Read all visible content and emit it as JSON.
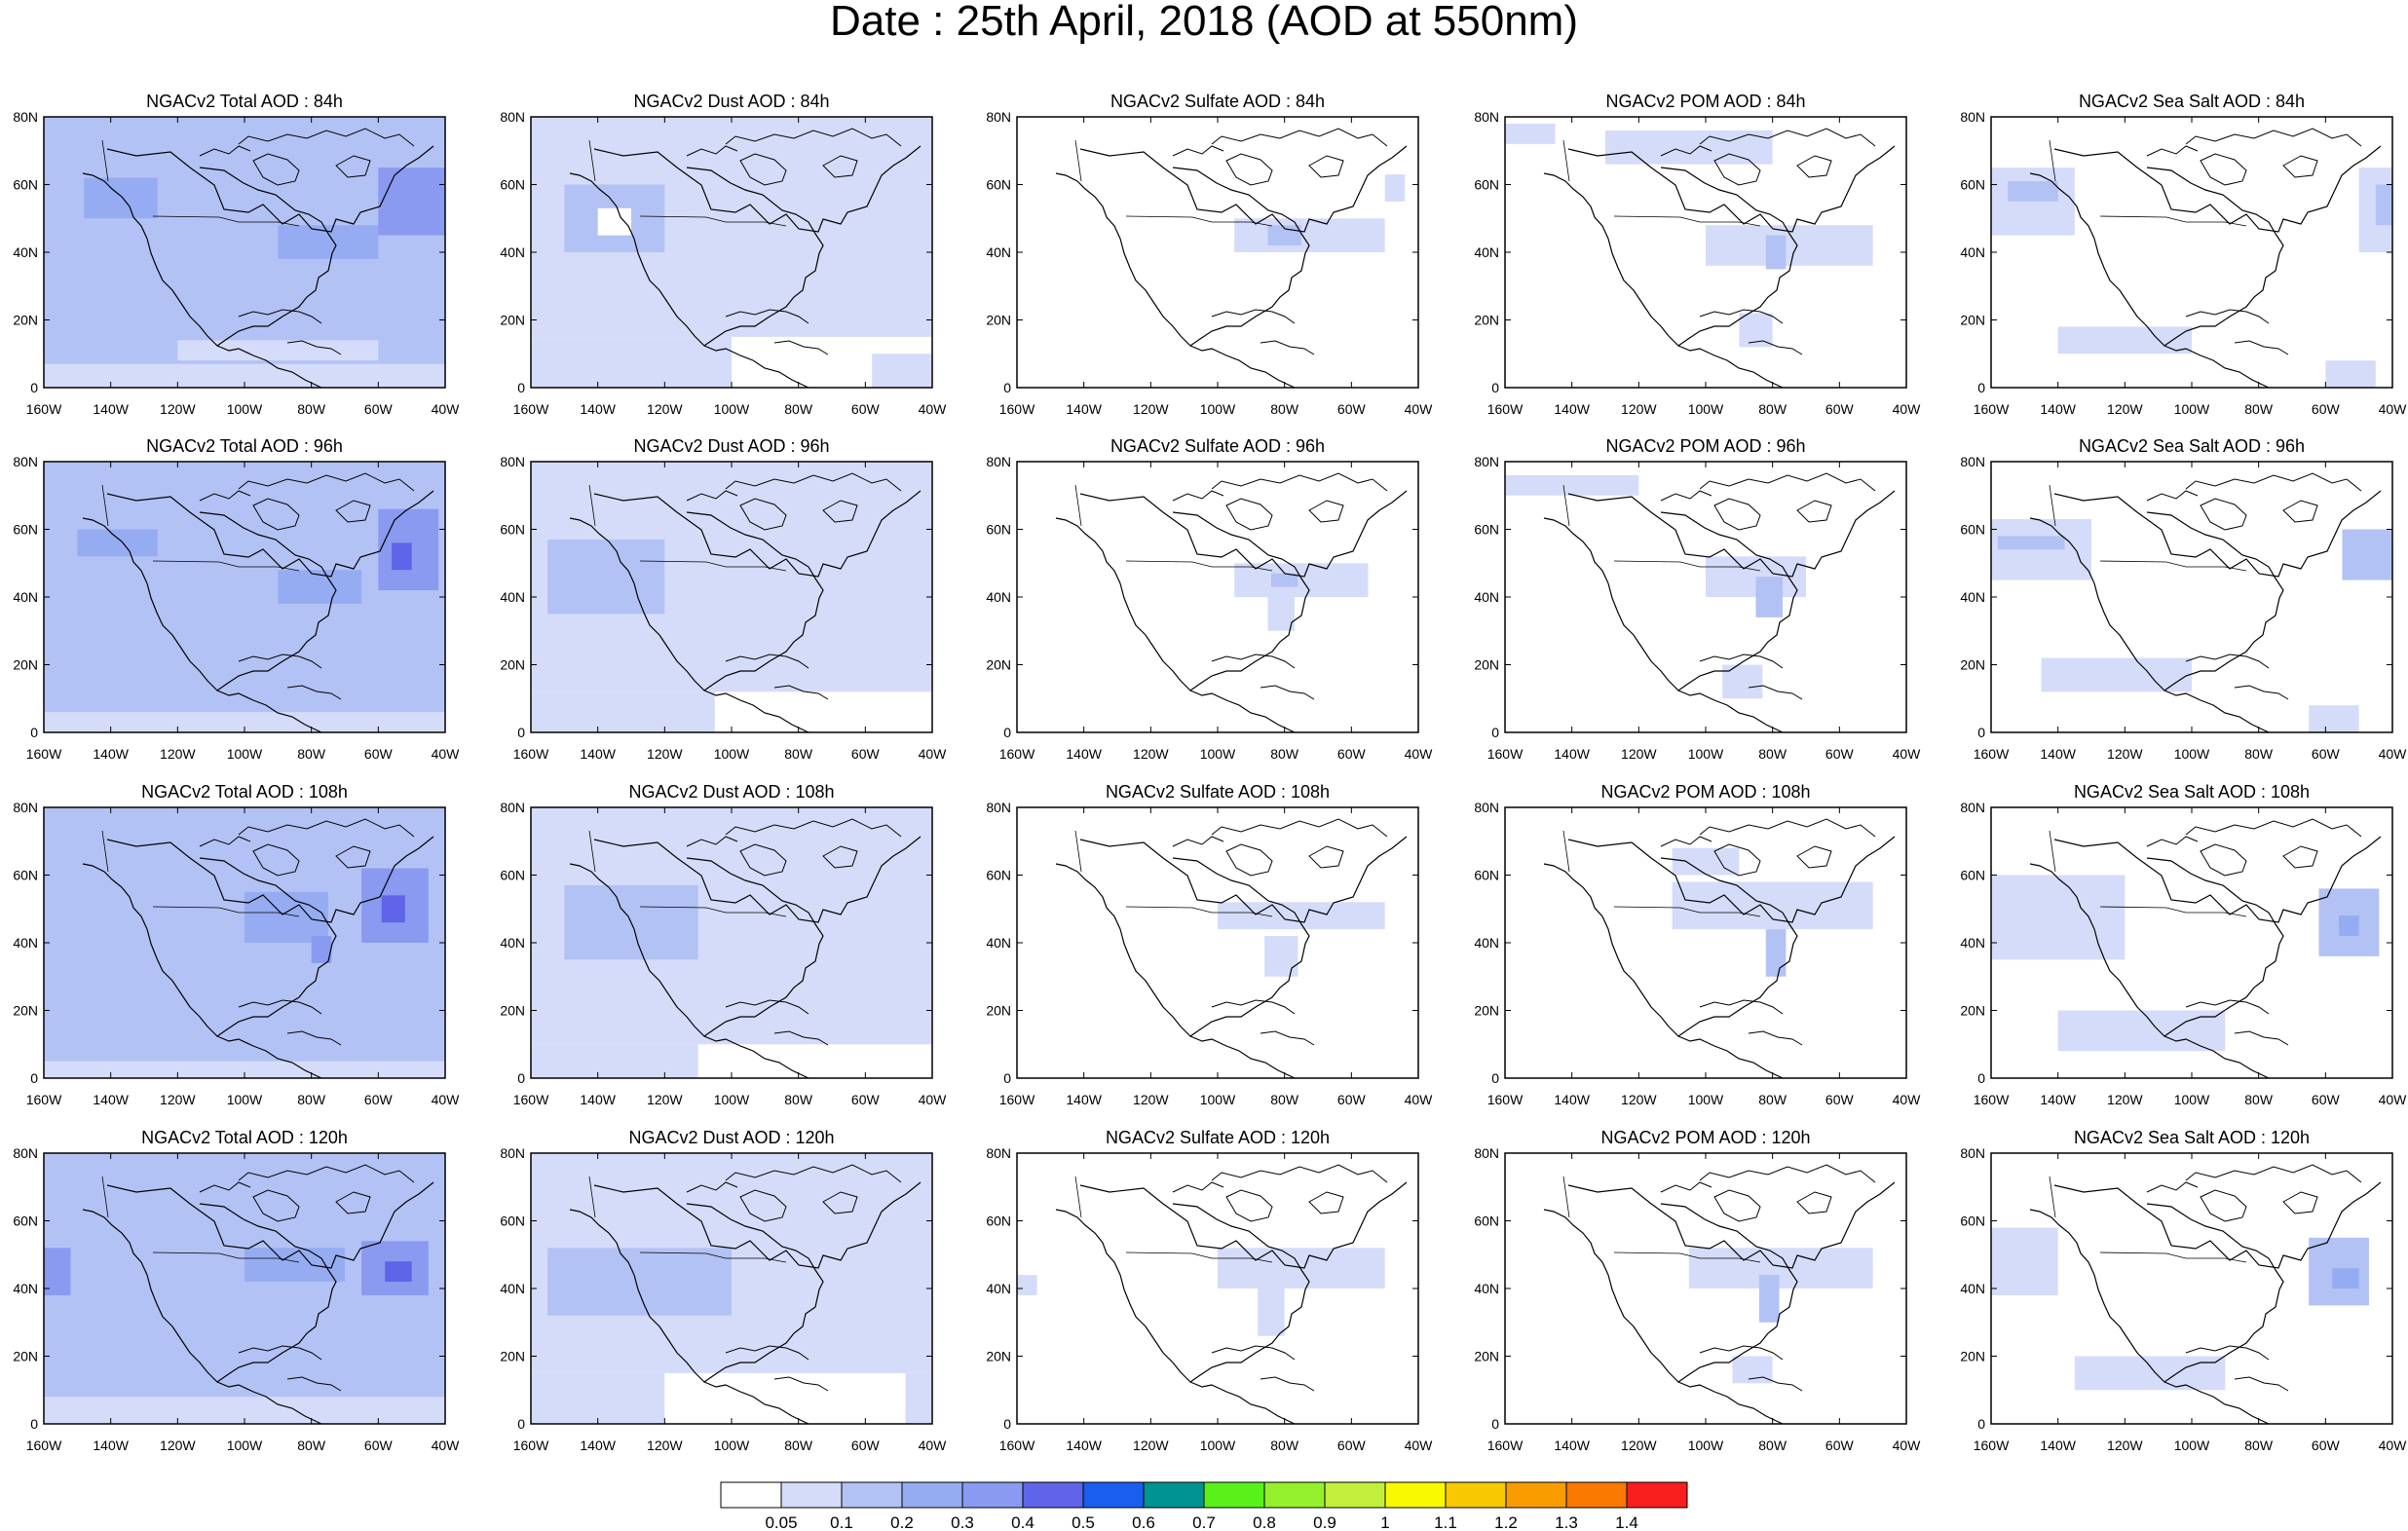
{
  "title": "Date : 25th April, 2018 (AOD at 550nm)",
  "rows": [
    "84h",
    "96h",
    "108h",
    "120h"
  ],
  "columns": [
    "Total",
    "Dust",
    "Sulfate",
    "POM",
    "Sea Salt"
  ],
  "panels": [
    [
      "NGACv2 Total AOD : 84h",
      "NGACv2 Dust AOD : 84h",
      "NGACv2 Sulfate AOD : 84h",
      "NGACv2 POM AOD : 84h",
      "NGACv2 Sea Salt AOD : 84h"
    ],
    [
      "NGACv2 Total AOD : 96h",
      "NGACv2 Dust AOD : 96h",
      "NGACv2 Sulfate AOD : 96h",
      "NGACv2 POM AOD : 96h",
      "NGACv2 Sea Salt AOD : 96h"
    ],
    [
      "NGACv2 Total AOD : 108h",
      "NGACv2 Dust AOD : 108h",
      "NGACv2 Sulfate AOD : 108h",
      "NGACv2 POM AOD : 108h",
      "NGACv2 Sea Salt AOD : 108h"
    ],
    [
      "NGACv2 Total AOD : 120h",
      "NGACv2 Dust AOD : 120h",
      "NGACv2 Sulfate AOD : 120h",
      "NGACv2 POM AOD : 120h",
      "NGACv2 Sea Salt  AOD : 120h"
    ]
  ],
  "map": {
    "lon_min": -160,
    "lon_max": -40,
    "lat_min": 0,
    "lat_max": 80,
    "lon_ticks": [
      -160,
      -140,
      -120,
      -100,
      -80,
      -60,
      -40
    ],
    "lon_labels": [
      "160W",
      "140W",
      "120W",
      "100W",
      "80W",
      "60W",
      "40W"
    ],
    "lat_ticks": [
      0,
      20,
      40,
      60,
      80
    ],
    "lat_labels": [
      "0",
      "20N",
      "40N",
      "60N",
      "80N"
    ]
  },
  "colorbar": {
    "labels": [
      "0.05",
      "0.1",
      "0.2",
      "0.3",
      "0.4",
      "0.5",
      "0.6",
      "0.7",
      "0.8",
      "0.9",
      "1",
      "1.1",
      "1.2",
      "1.3",
      "1.4"
    ],
    "colors": [
      "#ffffff",
      "#d5dcf9",
      "#b3c2f4",
      "#96acf2",
      "#8a9af0",
      "#5f64e8",
      "#1a5ef0",
      "#009393",
      "#5af01a",
      "#94f02a",
      "#c2f03a",
      "#f8f800",
      "#f8c800",
      "#f89c00",
      "#f87800",
      "#f81e1e"
    ]
  },
  "fields": {
    "Total": {
      "84h": [
        {
          "lon": -160,
          "lat": 0,
          "w": 120,
          "h": 80,
          "level": 2
        },
        {
          "lon": -160,
          "lat": 0,
          "w": 120,
          "h": 7,
          "level": 1
        },
        {
          "lon": -148,
          "lat": 50,
          "w": 22,
          "h": 12,
          "level": 3
        },
        {
          "lon": -90,
          "lat": 38,
          "w": 30,
          "h": 10,
          "level": 3
        },
        {
          "lon": -60,
          "lat": 45,
          "w": 20,
          "h": 20,
          "level": 4
        },
        {
          "lon": -120,
          "lat": 8,
          "w": 60,
          "h": 6,
          "level": 1
        }
      ],
      "96h": [
        {
          "lon": -160,
          "lat": 0,
          "w": 120,
          "h": 80,
          "level": 2
        },
        {
          "lon": -160,
          "lat": 0,
          "w": 120,
          "h": 6,
          "level": 1
        },
        {
          "lon": -150,
          "lat": 52,
          "w": 24,
          "h": 8,
          "level": 3
        },
        {
          "lon": -90,
          "lat": 38,
          "w": 25,
          "h": 10,
          "level": 3
        },
        {
          "lon": -60,
          "lat": 42,
          "w": 18,
          "h": 24,
          "level": 4
        },
        {
          "lon": -56,
          "lat": 48,
          "w": 6,
          "h": 8,
          "level": 5
        }
      ],
      "108h": [
        {
          "lon": -160,
          "lat": 0,
          "w": 120,
          "h": 80,
          "level": 2
        },
        {
          "lon": -160,
          "lat": 0,
          "w": 120,
          "h": 5,
          "level": 1
        },
        {
          "lon": -100,
          "lat": 40,
          "w": 25,
          "h": 15,
          "level": 3
        },
        {
          "lon": -65,
          "lat": 40,
          "w": 20,
          "h": 22,
          "level": 4
        },
        {
          "lon": -59,
          "lat": 46,
          "w": 7,
          "h": 8,
          "level": 5
        },
        {
          "lon": -80,
          "lat": 34,
          "w": 6,
          "h": 8,
          "level": 4
        }
      ],
      "120h": [
        {
          "lon": -160,
          "lat": 0,
          "w": 120,
          "h": 80,
          "level": 2
        },
        {
          "lon": -160,
          "lat": 0,
          "w": 120,
          "h": 8,
          "level": 1
        },
        {
          "lon": -160,
          "lat": 38,
          "w": 8,
          "h": 14,
          "level": 4
        },
        {
          "lon": -100,
          "lat": 42,
          "w": 30,
          "h": 10,
          "level": 3
        },
        {
          "lon": -65,
          "lat": 38,
          "w": 20,
          "h": 16,
          "level": 4
        },
        {
          "lon": -58,
          "lat": 42,
          "w": 8,
          "h": 6,
          "level": 5
        }
      ]
    },
    "Dust": {
      "84h": [
        {
          "lon": -160,
          "lat": 15,
          "w": 120,
          "h": 65,
          "level": 1
        },
        {
          "lon": -160,
          "lat": 0,
          "w": 60,
          "h": 15,
          "level": 1
        },
        {
          "lon": -150,
          "lat": 40,
          "w": 30,
          "h": 20,
          "level": 2
        },
        {
          "lon": -140,
          "lat": 45,
          "w": 10,
          "h": 8,
          "level": 0
        },
        {
          "lon": -58,
          "lat": 0,
          "w": 18,
          "h": 10,
          "level": 1
        }
      ],
      "96h": [
        {
          "lon": -160,
          "lat": 12,
          "w": 120,
          "h": 68,
          "level": 1
        },
        {
          "lon": -160,
          "lat": 0,
          "w": 55,
          "h": 12,
          "level": 1
        },
        {
          "lon": -155,
          "lat": 35,
          "w": 35,
          "h": 22,
          "level": 2
        },
        {
          "lon": -50,
          "lat": 20,
          "w": 10,
          "h": 40,
          "level": 1
        }
      ],
      "108h": [
        {
          "lon": -160,
          "lat": 10,
          "w": 120,
          "h": 70,
          "level": 1
        },
        {
          "lon": -160,
          "lat": 0,
          "w": 50,
          "h": 10,
          "level": 1
        },
        {
          "lon": -150,
          "lat": 35,
          "w": 40,
          "h": 22,
          "level": 2
        }
      ],
      "120h": [
        {
          "lon": -160,
          "lat": 15,
          "w": 120,
          "h": 65,
          "level": 1
        },
        {
          "lon": -160,
          "lat": 0,
          "w": 40,
          "h": 15,
          "level": 1
        },
        {
          "lon": -155,
          "lat": 32,
          "w": 55,
          "h": 20,
          "level": 2
        },
        {
          "lon": -48,
          "lat": 0,
          "w": 8,
          "h": 15,
          "level": 1
        }
      ]
    },
    "Sulfate": {
      "84h": [
        {
          "lon": -95,
          "lat": 40,
          "w": 45,
          "h": 10,
          "level": 1
        },
        {
          "lon": -85,
          "lat": 42,
          "w": 10,
          "h": 6,
          "level": 2
        },
        {
          "lon": -50,
          "lat": 55,
          "w": 6,
          "h": 8,
          "level": 1
        }
      ],
      "96h": [
        {
          "lon": -95,
          "lat": 40,
          "w": 40,
          "h": 10,
          "level": 1
        },
        {
          "lon": -84,
          "lat": 43,
          "w": 8,
          "h": 4,
          "level": 2
        },
        {
          "lon": -85,
          "lat": 30,
          "w": 8,
          "h": 10,
          "level": 1
        }
      ],
      "108h": [
        {
          "lon": -100,
          "lat": 44,
          "w": 50,
          "h": 8,
          "level": 1
        },
        {
          "lon": -86,
          "lat": 30,
          "w": 10,
          "h": 12,
          "level": 1
        }
      ],
      "120h": [
        {
          "lon": -100,
          "lat": 40,
          "w": 50,
          "h": 12,
          "level": 1
        },
        {
          "lon": -88,
          "lat": 26,
          "w": 8,
          "h": 14,
          "level": 1
        },
        {
          "lon": -160,
          "lat": 38,
          "w": 6,
          "h": 6,
          "level": 1
        }
      ]
    },
    "POM": {
      "84h": [
        {
          "lon": -160,
          "lat": 72,
          "w": 15,
          "h": 6,
          "level": 1
        },
        {
          "lon": -130,
          "lat": 66,
          "w": 50,
          "h": 10,
          "level": 1
        },
        {
          "lon": -100,
          "lat": 36,
          "w": 50,
          "h": 12,
          "level": 1
        },
        {
          "lon": -82,
          "lat": 35,
          "w": 6,
          "h": 10,
          "level": 2
        },
        {
          "lon": -90,
          "lat": 12,
          "w": 10,
          "h": 10,
          "level": 1
        }
      ],
      "96h": [
        {
          "lon": -160,
          "lat": 70,
          "w": 40,
          "h": 6,
          "level": 1
        },
        {
          "lon": -100,
          "lat": 40,
          "w": 30,
          "h": 12,
          "level": 1
        },
        {
          "lon": -85,
          "lat": 34,
          "w": 8,
          "h": 12,
          "level": 2
        },
        {
          "lon": -95,
          "lat": 10,
          "w": 12,
          "h": 10,
          "level": 1
        }
      ],
      "108h": [
        {
          "lon": -110,
          "lat": 44,
          "w": 60,
          "h": 14,
          "level": 1
        },
        {
          "lon": -82,
          "lat": 30,
          "w": 6,
          "h": 14,
          "level": 2
        },
        {
          "lon": -110,
          "lat": 60,
          "w": 20,
          "h": 8,
          "level": 1
        }
      ],
      "120h": [
        {
          "lon": -105,
          "lat": 40,
          "w": 55,
          "h": 12,
          "level": 1
        },
        {
          "lon": -84,
          "lat": 30,
          "w": 6,
          "h": 14,
          "level": 2
        },
        {
          "lon": -92,
          "lat": 12,
          "w": 12,
          "h": 8,
          "level": 1
        }
      ]
    },
    "Sea Salt": {
      "84h": [
        {
          "lon": -160,
          "lat": 45,
          "w": 25,
          "h": 20,
          "level": 1
        },
        {
          "lon": -155,
          "lat": 55,
          "w": 15,
          "h": 6,
          "level": 2
        },
        {
          "lon": -140,
          "lat": 10,
          "w": 40,
          "h": 8,
          "level": 1
        },
        {
          "lon": -50,
          "lat": 40,
          "w": 10,
          "h": 25,
          "level": 1
        },
        {
          "lon": -45,
          "lat": 48,
          "w": 5,
          "h": 12,
          "level": 2
        },
        {
          "lon": -60,
          "lat": 0,
          "w": 15,
          "h": 8,
          "level": 1
        }
      ],
      "96h": [
        {
          "lon": -160,
          "lat": 45,
          "w": 30,
          "h": 18,
          "level": 1
        },
        {
          "lon": -158,
          "lat": 54,
          "w": 20,
          "h": 4,
          "level": 2
        },
        {
          "lon": -145,
          "lat": 12,
          "w": 45,
          "h": 10,
          "level": 1
        },
        {
          "lon": -55,
          "lat": 45,
          "w": 15,
          "h": 15,
          "level": 2
        },
        {
          "lon": -65,
          "lat": 0,
          "w": 15,
          "h": 8,
          "level": 1
        }
      ],
      "108h": [
        {
          "lon": -160,
          "lat": 35,
          "w": 40,
          "h": 25,
          "level": 1
        },
        {
          "lon": -140,
          "lat": 8,
          "w": 50,
          "h": 12,
          "level": 1
        },
        {
          "lon": -62,
          "lat": 36,
          "w": 18,
          "h": 20,
          "level": 2
        },
        {
          "lon": -56,
          "lat": 42,
          "w": 6,
          "h": 6,
          "level": 3
        }
      ],
      "120h": [
        {
          "lon": -160,
          "lat": 38,
          "w": 20,
          "h": 20,
          "level": 1
        },
        {
          "lon": -135,
          "lat": 10,
          "w": 45,
          "h": 10,
          "level": 1
        },
        {
          "lon": -65,
          "lat": 35,
          "w": 18,
          "h": 20,
          "level": 2
        },
        {
          "lon": -58,
          "lat": 40,
          "w": 8,
          "h": 6,
          "level": 3
        }
      ]
    }
  }
}
